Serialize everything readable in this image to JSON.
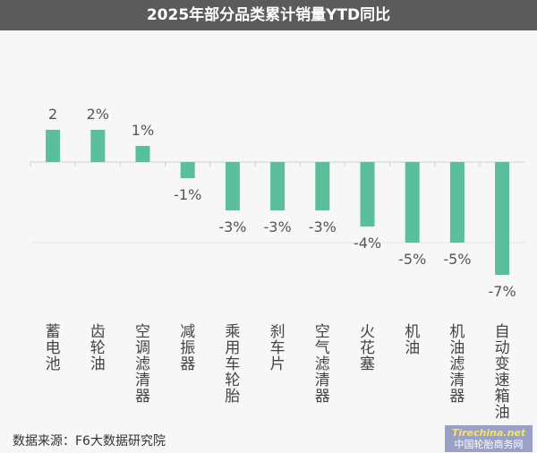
{
  "chart_data": {
    "type": "bar",
    "title": "2025年部分品类累计销量YTD同比",
    "categories": [
      "蓄电池",
      "齿轮油",
      "空调滤清器",
      "减振器",
      "乘用车轮胎",
      "刹车片",
      "空气滤清器",
      "火花塞",
      "机油",
      "机油滤清器",
      "自动变速箱油"
    ],
    "values": [
      2,
      2,
      1,
      -1,
      -3,
      -3,
      -3,
      -4,
      -5,
      -5,
      -7
    ],
    "data_labels": [
      "2",
      "2%",
      "1%",
      "-1%",
      "-3%",
      "-3%",
      "-3%",
      "-4%",
      "-5%",
      "-5%",
      "-7%"
    ],
    "unit": "%",
    "bar_color": "#5bbf9c",
    "grid": true
  },
  "source": "数据来源：F6大数据研究院",
  "watermark": {
    "brand": "Tirechina.net",
    "name": "中国轮胎商务网"
  }
}
